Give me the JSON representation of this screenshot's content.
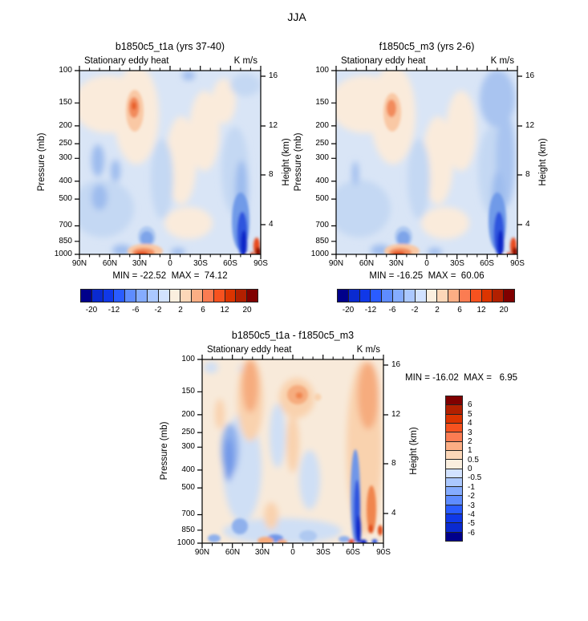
{
  "page": {
    "title": "JJA",
    "background": "#FFFFFF"
  },
  "palette": {
    "diverging_16": [
      "#00008B",
      "#0A2AD0",
      "#1038E8",
      "#2A5CFF",
      "#5E8CFF",
      "#85ACFF",
      "#ABC8FF",
      "#D2E2FF",
      "#FBEFDF",
      "#FCD7B8",
      "#FCAE84",
      "#FB7C52",
      "#F7521F",
      "#DC3400",
      "#B22000",
      "#800000"
    ]
  },
  "axes": {
    "pressure_label": "Pressure (mb)",
    "height_label": "Height (km)",
    "pressure_ticks": [
      "100",
      "150",
      "200",
      "250",
      "300",
      "400",
      "500",
      "700",
      "850",
      "1000"
    ],
    "height_ticks": [
      "16",
      "12",
      "8",
      "4"
    ],
    "lat_ticks": [
      "90N",
      "60N",
      "30N",
      "0",
      "30S",
      "60S",
      "90S"
    ]
  },
  "panels": [
    {
      "title": "b1850c5_t1a (yrs 37-40)",
      "field": "Stationary eddy heat",
      "units": "K m/s",
      "stats": "MIN = -22.52  MAX =  74.12",
      "colorbar_labels": [
        "-20",
        "-12",
        "-6",
        "-2",
        "2",
        "6",
        "12",
        "20"
      ]
    },
    {
      "title": "f1850c5_m3 (yrs 2-6)",
      "field": "Stationary eddy heat",
      "units": "K m/s",
      "stats": "MIN = -16.25  MAX =  60.06",
      "colorbar_labels": [
        "-20",
        "-12",
        "-6",
        "-2",
        "2",
        "6",
        "12",
        "20"
      ]
    },
    {
      "title": "b1850c5_t1a - f1850c5_m3",
      "field": "Stationary eddy heat",
      "units": "K m/s",
      "stats": "MIN = -16.02  MAX =   6.95",
      "colorbar_labels": [
        "6",
        "5",
        "4",
        "3",
        "2",
        "1",
        "0.5",
        "0",
        "-0.5",
        "-1",
        "-2",
        "-3",
        "-4",
        "-5",
        "-6"
      ]
    }
  ],
  "chart_data": [
    {
      "type": "heatmap",
      "title": "b1850c5_t1a (yrs 37-40)",
      "subtitle": "Stationary eddy heat",
      "season": "JJA",
      "units": "K m/s",
      "x_ticks": [
        "90N",
        "60N",
        "30N",
        "0",
        "30S",
        "60S",
        "90S"
      ],
      "y_left": {
        "label": "Pressure (mb)",
        "scale": "log",
        "ticks": [
          100,
          150,
          200,
          250,
          300,
          400,
          500,
          700,
          850,
          1000
        ]
      },
      "y_right": {
        "label": "Height (km)",
        "ticks": [
          16,
          12,
          8,
          4
        ]
      },
      "min": -22.52,
      "max": 74.12,
      "colorbar": {
        "orientation": "horizontal",
        "labeled_levels": [
          -20,
          -12,
          -6,
          -2,
          2,
          6,
          12,
          20
        ],
        "n_colors": 16
      },
      "features": "warm maximum near 30N at 150mb; strong negative (blue) cell 60S-80S below 500mb; warm cell at surface near 30N and near 85S"
    },
    {
      "type": "heatmap",
      "title": "f1850c5_m3 (yrs 2-6)",
      "subtitle": "Stationary eddy heat",
      "season": "JJA",
      "units": "K m/s",
      "x_ticks": [
        "90N",
        "60N",
        "30N",
        "0",
        "30S",
        "60S",
        "90S"
      ],
      "y_left": {
        "label": "Pressure (mb)",
        "scale": "log",
        "ticks": [
          100,
          150,
          200,
          250,
          300,
          400,
          500,
          700,
          850,
          1000
        ]
      },
      "y_right": {
        "label": "Height (km)",
        "ticks": [
          16,
          12,
          8,
          4
        ]
      },
      "min": -16.25,
      "max": 60.06,
      "colorbar": {
        "orientation": "horizontal",
        "labeled_levels": [
          -20,
          -12,
          -6,
          -2,
          2,
          6,
          12,
          20
        ],
        "n_colors": 16
      },
      "features": "similar pattern to case 1 with weaker 30N/150mb maximum and broader blue band over 60S-90S"
    },
    {
      "type": "heatmap",
      "title": "b1850c5_t1a - f1850c5_m3",
      "subtitle": "Stationary eddy heat",
      "season": "JJA",
      "units": "K m/s",
      "x_ticks": [
        "90N",
        "60N",
        "30N",
        "0",
        "30S",
        "60S",
        "90S"
      ],
      "y_left": {
        "label": "Pressure (mb)",
        "scale": "log",
        "ticks": [
          100,
          150,
          200,
          250,
          300,
          400,
          500,
          700,
          850,
          1000
        ]
      },
      "y_right": {
        "label": "Height (km)",
        "ticks": [
          16,
          12,
          8,
          4
        ]
      },
      "min": -16.02,
      "max": 6.95,
      "colorbar": {
        "orientation": "vertical",
        "labeled_levels": [
          6,
          5,
          4,
          3,
          2,
          1,
          0.5,
          0,
          -0.5,
          -1,
          -2,
          -3,
          -4,
          -5,
          -6
        ],
        "n_colors": 16
      },
      "features": "mottled weak differences; positive band near 60N aloft and along 60S-90S; narrow strong negative streak near 70S below 200mb"
    }
  ]
}
